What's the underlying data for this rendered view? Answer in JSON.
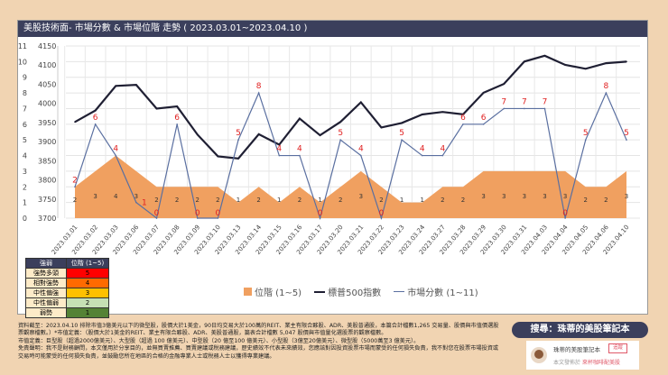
{
  "title": "美股技術面- 市場分數 & 市場位階 走勢 ( 2023.03.01~2023.04.10 )",
  "chart_data": {
    "type": "line",
    "categories": [
      "2023.03.01",
      "2023.03.02",
      "2023.03.03",
      "2023.03.06",
      "2023.03.07",
      "2023.03.08",
      "2023.03.09",
      "2023.03.10",
      "2023.03.13",
      "2023.03.14",
      "2023.03.15",
      "2023.03.16",
      "2023.03.17",
      "2023.03.20",
      "2023.03.21",
      "2023.03.22",
      "2023.03.23",
      "2023.03.24",
      "2023.03.27",
      "2023.03.28",
      "2023.03.29",
      "2023.03.30",
      "2023.03.31",
      "2023.04.03",
      "2023.04.04",
      "2023.04.05",
      "2023.04.06",
      "2023.04.10"
    ],
    "series": [
      {
        "name": "位階 (1~5)",
        "type": "area",
        "axis": "left-inner",
        "values": [
          2,
          3,
          4,
          3,
          2,
          2,
          2,
          2,
          1,
          2,
          1,
          2,
          1,
          2,
          3,
          2,
          1,
          1,
          2,
          2,
          3,
          3,
          3,
          3,
          3,
          2,
          2,
          3
        ]
      },
      {
        "name": "標普500指數",
        "type": "line",
        "axis": "sp",
        "values": [
          3951.39,
          3981.35,
          4045.64,
          4048.42,
          3986.37,
          3992.01,
          3918.32,
          3861.59,
          3855.76,
          3919.29,
          3891.93,
          3960.28,
          3916.64,
          3951.57,
          4002.87,
          3936.97,
          3948.72,
          3970.99,
          3977.53,
          3971.27,
          4027.81,
          4050.83,
          4109.31,
          4124.51,
          4100.6,
          4090.38,
          4105.02,
          4109.11
        ]
      },
      {
        "name": "市場分數 (1~11)",
        "type": "line",
        "axis": "left-outer",
        "values": [
          2,
          6,
          4,
          1,
          0,
          6,
          0,
          0,
          5,
          8,
          4,
          4,
          0,
          5,
          4,
          0,
          5,
          4,
          4,
          6,
          6,
          7,
          7,
          7,
          0,
          5,
          8,
          5
        ]
      }
    ],
    "score_axis": {
      "ticks": [
        "0",
        "1",
        "2",
        "3",
        "4",
        "5",
        "6",
        "7",
        "8",
        "9",
        "10",
        "11"
      ],
      "ylim": [
        0,
        11
      ]
    },
    "sp_axis": {
      "ticks": [
        "3700",
        "3750",
        "3800",
        "3850",
        "3900",
        "3950",
        "4000",
        "4050",
        "4100",
        "4150"
      ],
      "ylim": [
        3700,
        4150
      ]
    },
    "legend": [
      "位階 (1~5)",
      "標普500指數",
      "市場分數 (1~11)"
    ],
    "legend_placement": "bottom",
    "grid": true
  },
  "legend_table": {
    "headers": [
      "強弱",
      "位階 (1~5)"
    ],
    "rows": [
      {
        "label": "強勢多頭",
        "value": "5",
        "color": "#ff0000"
      },
      {
        "label": "相對強勢",
        "value": "4",
        "color": "#ff6a00"
      },
      {
        "label": "中性偏強",
        "value": "3",
        "color": "#ffc000"
      },
      {
        "label": "中性偏弱",
        "value": "2",
        "color": "#c6e0b4"
      },
      {
        "label": "弱勢",
        "value": "1",
        "color": "#548235"
      }
    ]
  },
  "footnote": [
    "資料截至：2023.04.10 排除市值3億美元以下的微型股，股價大於1美金，90日均交易大於100萬的REIT、業主有限合夥股、ADR、美股普通股，本篇合計檔數1,265 交易量、股價與市值價選股票觀察檔數。）*市值定義：（股價大於1美金的REIT、業主有限合夥股、ADR、美股普通股，篇表合計檔數 5,047 股價與市值量化選股票的觀察檔數。",
    "市值定義：巨型股（超過2000億美元）、大型股（超過 100 億美元）、中型股（20 億至100 億美元）、小型股（3億至20億美元）、微型股（5000萬至3 億美元）。",
    "免責聲明：我不是財務顧問，本文僅用於分享目的，並無買賣推薦、買賣建議或稅務建議，歷史績效不代表未來績效，您應該對因投資股票市場而蒙受的任何損失負責，我不對您在股票市場投資或交易時可能蒙受的任何損失負責，並鼓勵您所在地區的合格的金融專業人士或稅務人士以獲得專業建議。"
  ],
  "search_label": "搜尋：珠蒂的美股筆記本",
  "card": {
    "name": "珠蒂的美股筆記本",
    "follow": "追蹤",
    "published_prefix": "本文發佈於",
    "published_source": "來杯咖啡配美股"
  },
  "colors": {
    "area": "#f0a060",
    "sp": "#1f1f33",
    "score": "#5a6fa0",
    "label": "#e02020",
    "navy": "#3b3f5c"
  }
}
